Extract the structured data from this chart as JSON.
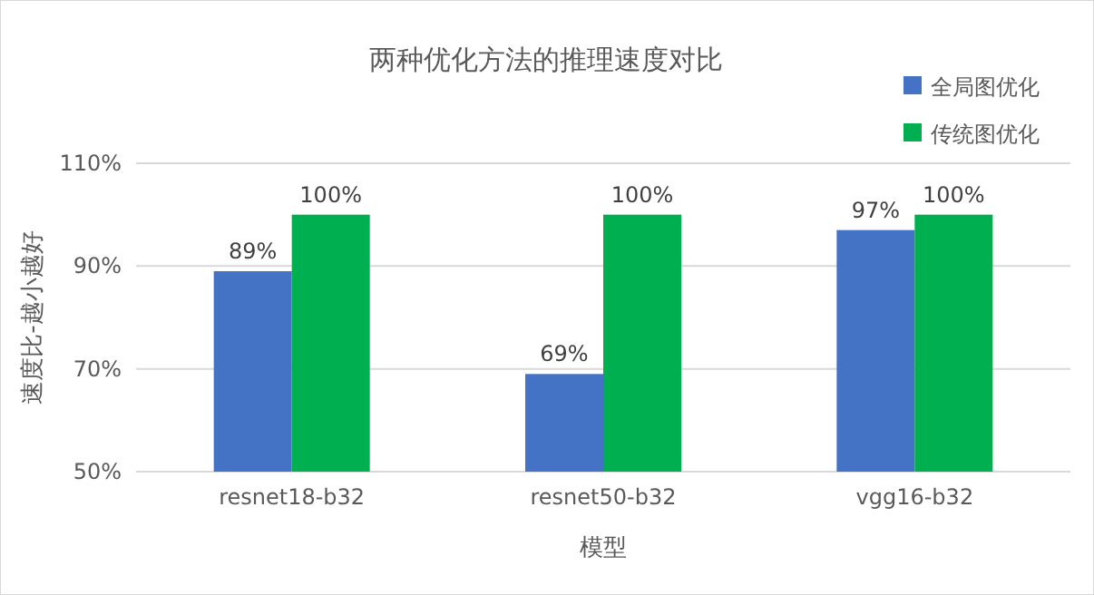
{
  "chart_data": {
    "type": "bar",
    "title": "两种优化方法的推理速度对比",
    "xlabel": "模型",
    "ylabel": "速度比-越小越好",
    "categories": [
      "resnet18-b32",
      "resnet50-b32",
      "vgg16-b32"
    ],
    "series": [
      {
        "name": "全局图优化",
        "color": "#4472c4",
        "values": [
          89,
          69,
          97
        ],
        "value_labels": [
          "89%",
          "69%",
          "97%"
        ]
      },
      {
        "name": "传统图优化",
        "color": "#00b050",
        "values": [
          100,
          100,
          100
        ],
        "value_labels": [
          "100%",
          "100%",
          "100%"
        ]
      }
    ],
    "ylim": [
      50,
      110
    ],
    "yticks": [
      {
        "value": 50,
        "label": "50%"
      },
      {
        "value": 70,
        "label": "70%"
      },
      {
        "value": 90,
        "label": "90%"
      },
      {
        "value": 110,
        "label": "110%"
      }
    ],
    "grid": "y",
    "legend": "top right"
  }
}
